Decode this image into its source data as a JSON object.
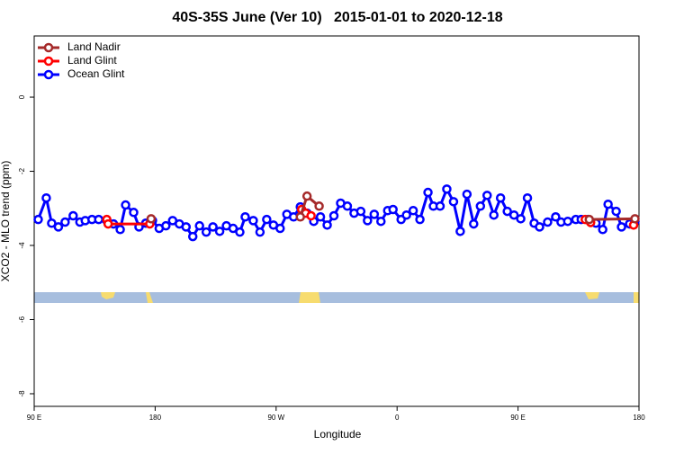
{
  "chart_data": {
    "type": "line",
    "title": "40S-35S June (Ver 10)   2015-01-01 to 2020-12-18",
    "x_label": "Longitude",
    "y_label": "XCO2 - MLO trend (ppm)",
    "xlim": [
      90,
      540
    ],
    "xticks": [
      {
        "value": 90,
        "label": "90 E"
      },
      180,
      {
        "value": 270,
        "label": "90 W"
      },
      {
        "value": 360,
        "label": "0"
      },
      {
        "value": 450,
        "label": "90 E"
      },
      {
        "value": 540,
        "label": "180"
      }
    ],
    "ylim": [
      -8.34,
      1.65
    ],
    "yticks": [
      0,
      -2,
      -4,
      -6,
      -8
    ],
    "legend": "top-left",
    "series": [
      {
        "name": "Land Nadir",
        "color": "#a52a2a",
        "x": [
          177,
          230,
          288,
          293,
          302,
          400,
          503,
          537
        ],
        "values": [
          -3.28,
          null,
          -3.23,
          -2.67,
          -2.94,
          null,
          -3.3,
          -3.28
        ]
      },
      {
        "name": "Land Glint",
        "color": "#ff0000",
        "x": [
          144,
          145,
          176,
          230,
          289,
          292,
          296,
          400,
          500,
          504,
          520,
          536
        ],
        "values": [
          -3.3,
          -3.42,
          -3.42,
          null,
          -3.03,
          -3.13,
          -3.2,
          null,
          -3.3,
          -3.38,
          null,
          -3.45
        ]
      },
      {
        "name": "Ocean Glint",
        "color": "#0000ff",
        "x": [
          93,
          99,
          103,
          108,
          113,
          119,
          124,
          128,
          133,
          138,
          144,
          149,
          154,
          158,
          164,
          168,
          173,
          178,
          183,
          188,
          193,
          198,
          203,
          208,
          213,
          218,
          223,
          228,
          233,
          238,
          243,
          247,
          253,
          258,
          263,
          268,
          273,
          278,
          283,
          288,
          293,
          298,
          303,
          308,
          313,
          318,
          323,
          328,
          333,
          338,
          343,
          348,
          353,
          357,
          363,
          367,
          372,
          377,
          383,
          387,
          392,
          397,
          402,
          407,
          412,
          417,
          422,
          427,
          432,
          437,
          442,
          447,
          452,
          457,
          462,
          466,
          472,
          478,
          482,
          487,
          493,
          497,
          502,
          508,
          513,
          517,
          523,
          527,
          533,
          537
        ],
        "values": [
          -3.3,
          -2.72,
          -3.4,
          -3.5,
          -3.37,
          -3.2,
          -3.37,
          -3.33,
          -3.3,
          -3.3,
          -3.33,
          -3.42,
          -3.57,
          -2.91,
          -3.11,
          -3.5,
          -3.4,
          -3.33,
          -3.54,
          -3.47,
          -3.33,
          -3.42,
          -3.5,
          -3.76,
          -3.47,
          -3.64,
          -3.5,
          -3.62,
          -3.47,
          -3.54,
          -3.64,
          -3.23,
          -3.33,
          -3.64,
          -3.3,
          -3.45,
          -3.54,
          -3.16,
          -3.23,
          -2.96,
          -3.13,
          -3.35,
          -3.23,
          -3.45,
          -3.2,
          -2.86,
          -2.94,
          -3.13,
          -3.08,
          -3.33,
          -3.16,
          -3.35,
          -3.06,
          -3.03,
          -3.3,
          -3.18,
          -3.06,
          -3.3,
          -2.57,
          -2.94,
          -2.94,
          -2.48,
          -2.82,
          -3.62,
          -2.62,
          -3.42,
          -2.94,
          -2.65,
          -3.18,
          -2.72,
          -3.08,
          -3.18,
          -3.28,
          -2.72,
          -3.4,
          -3.5,
          -3.37,
          -3.23,
          -3.37,
          -3.35,
          -3.3,
          -3.3,
          -3.3,
          -3.4,
          -3.57,
          -2.89,
          -3.08,
          -3.5,
          -3.42,
          -3.35
        ]
      }
    ]
  }
}
